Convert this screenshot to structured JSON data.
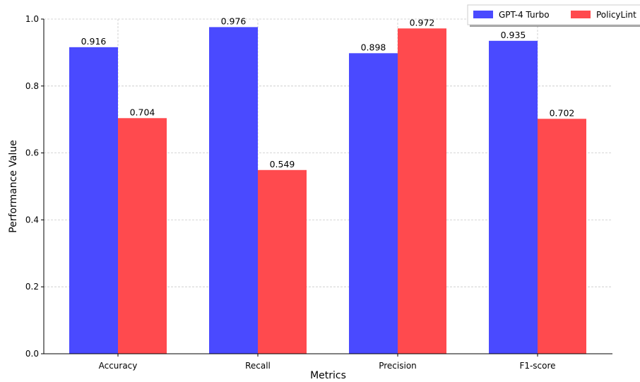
{
  "chart_data": {
    "type": "bar",
    "categories": [
      "Accuracy",
      "Recall",
      "Precision",
      "F1-score"
    ],
    "series": [
      {
        "name": "GPT-4 Turbo",
        "values": [
          0.916,
          0.976,
          0.898,
          0.935
        ],
        "color": "#4a4aff"
      },
      {
        "name": "PolicyLint",
        "values": [
          0.704,
          0.549,
          0.972,
          0.702
        ],
        "color": "#ff4a4e"
      }
    ],
    "value_labels": [
      [
        "0.916",
        "0.976",
        "0.898",
        "0.935"
      ],
      [
        "0.704",
        "0.549",
        "0.972",
        "0.702"
      ]
    ],
    "title": "",
    "xlabel": "Metrics",
    "ylabel": "Performance Value",
    "ylim": [
      0,
      1.0
    ],
    "yticks": [
      0.0,
      0.2,
      0.4,
      0.6,
      0.8,
      1.0
    ],
    "ytick_labels": [
      "0.0",
      "0.2",
      "0.4",
      "0.6",
      "0.8",
      "1.0"
    ],
    "grid": true,
    "legend_position": "top-right"
  }
}
